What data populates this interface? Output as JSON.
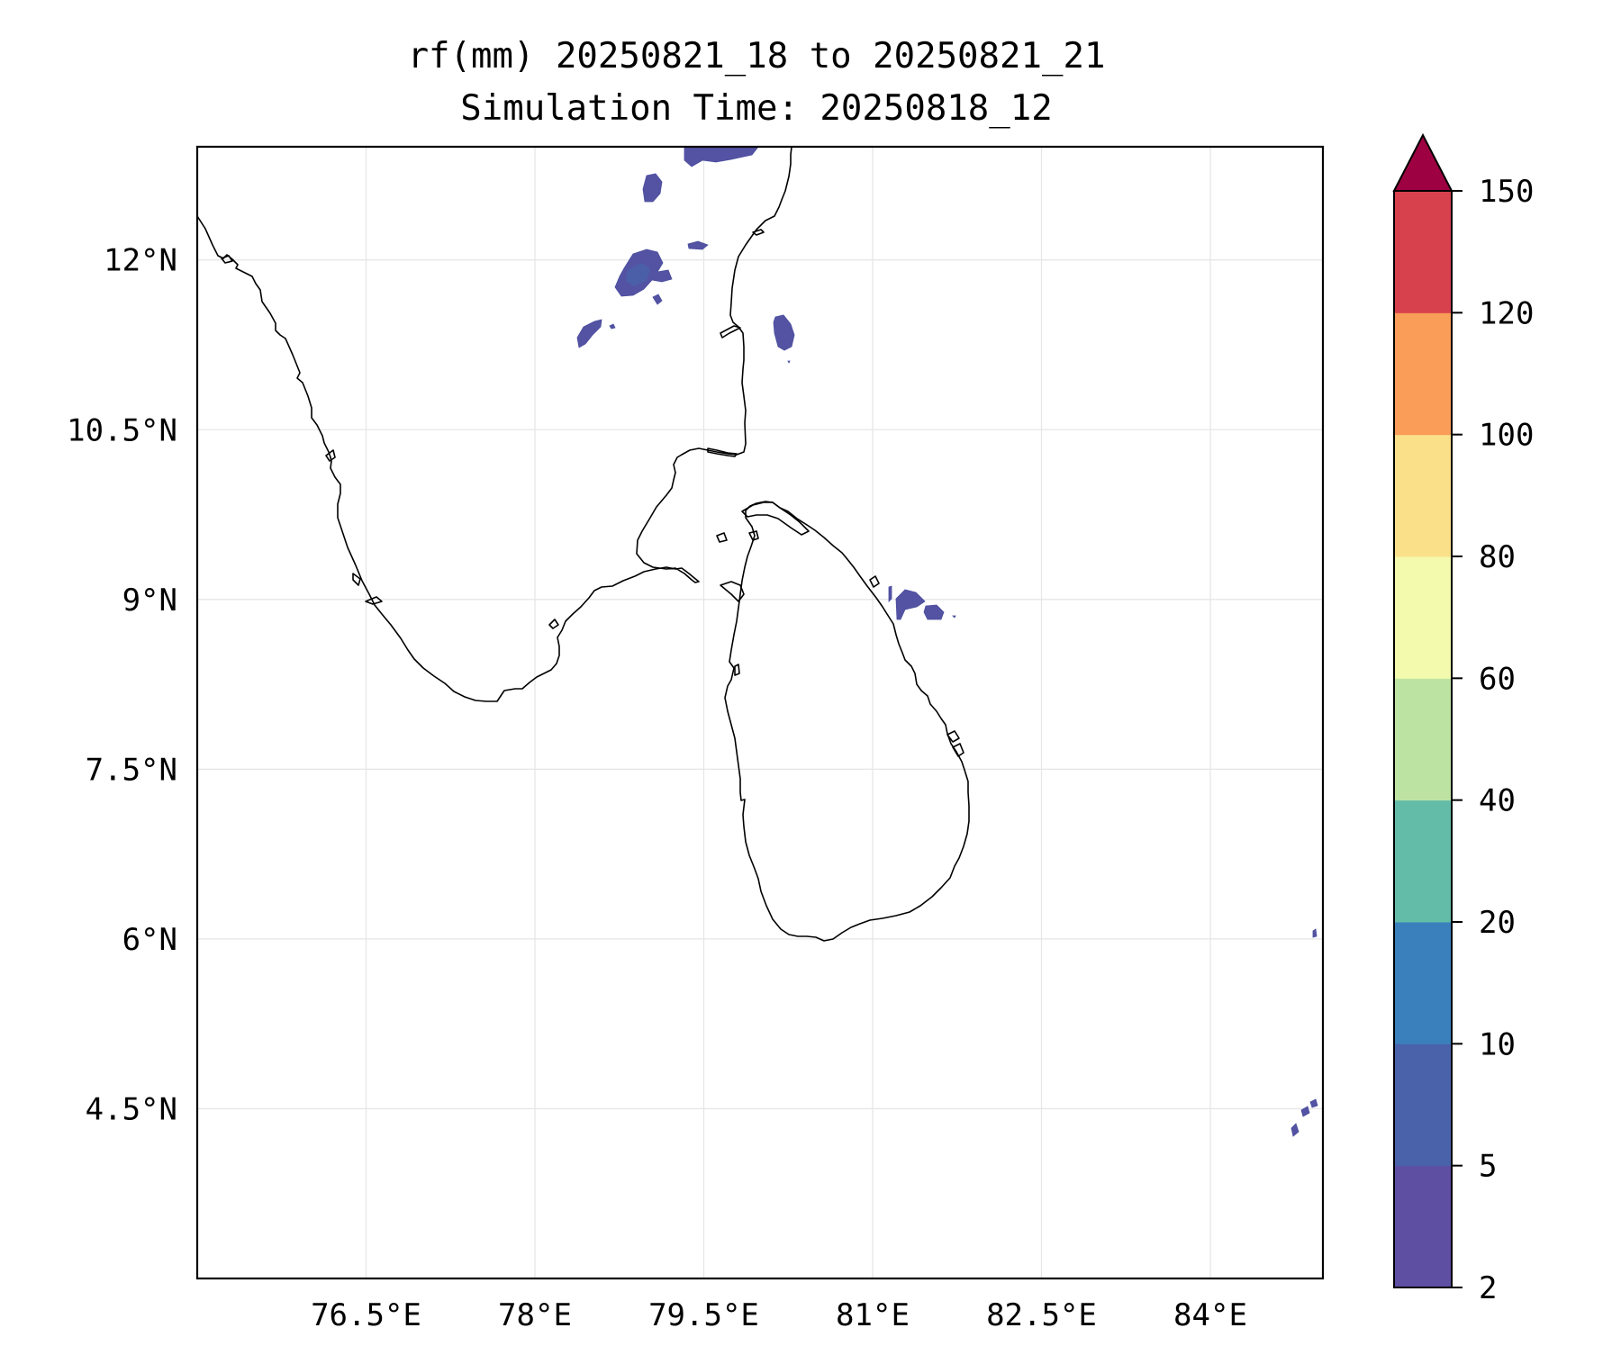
{
  "title": {
    "line1": "rf(mm) 20250821_18 to 20250821_21",
    "line2": "Simulation Time: 20250818_12"
  },
  "map": {
    "extent": {
      "lon": [
        75.0,
        85.0
      ],
      "lat": [
        3.0,
        13.0
      ]
    },
    "x_ticks": [
      {
        "lon": 76.5,
        "label": "76.5°E"
      },
      {
        "lon": 78.0,
        "label": "78°E"
      },
      {
        "lon": 79.5,
        "label": "79.5°E"
      },
      {
        "lon": 81.0,
        "label": "81°E"
      },
      {
        "lon": 82.5,
        "label": "82.5°E"
      },
      {
        "lon": 84.0,
        "label": "84°E"
      }
    ],
    "y_ticks": [
      {
        "lat": 12.0,
        "label": "12°N"
      },
      {
        "lat": 10.5,
        "label": "10.5°N"
      },
      {
        "lat": 9.0,
        "label": "9°N"
      },
      {
        "lat": 7.5,
        "label": "7.5°N"
      },
      {
        "lat": 6.0,
        "label": "6°N"
      },
      {
        "lat": 4.5,
        "label": "4.5°N"
      }
    ],
    "gridlines": true
  },
  "colorbar": {
    "levels": [
      "2",
      "5",
      "10",
      "20",
      "40",
      "60",
      "80",
      "100",
      "120",
      "150"
    ],
    "colors": [
      "#5e4fa2",
      "#4a62aa",
      "#3a80bc",
      "#63bca8",
      "#bde3a2",
      "#f3faad",
      "#fbe08a",
      "#f99d59",
      "#d7414e"
    ],
    "extend_color": "#9e0142",
    "extend": "max"
  },
  "colors": {
    "rain_light": "#5453a3",
    "coastline": "#000000"
  }
}
